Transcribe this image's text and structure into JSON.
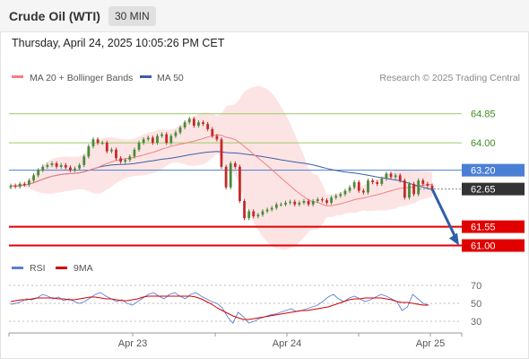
{
  "header": {
    "title": "Crude Oil (WTI)",
    "interval": "30 MIN"
  },
  "datetime": "Thursday, April 24, 2025 10:05:26 PM CET",
  "legend": {
    "ma20": "MA 20 + Bollinger Bands",
    "ma50": "MA 50",
    "copyright": "Research © 2025 Trading Central"
  },
  "rsi_legend": {
    "rsi": "RSI",
    "ma9": "9MA"
  },
  "colors": {
    "candle_up": "#4a8a3a",
    "candle_down": "#c62828",
    "ma20": "#f08080",
    "ma50": "#3b5fa8",
    "bands": "#fde4e4",
    "resistance": "#9ccc65",
    "pivot": "#4a7fd6",
    "support": "#e00000",
    "current": "#333333",
    "arrow": "#2f5ea8",
    "rsi_line": "#5b7fd4",
    "rsi_ma": "#d40000"
  },
  "chart_data": [
    {
      "type": "candlestick",
      "instrument": "Crude Oil (WTI)",
      "timeframe": "30 MIN",
      "x_ticks": [
        "Apr 23",
        "Apr 24",
        "Apr 25"
      ],
      "y_range": [
        60.7,
        65.55
      ],
      "close": [
        62.75,
        62.72,
        62.8,
        62.78,
        62.9,
        63.05,
        63.2,
        63.3,
        63.35,
        63.4,
        63.3,
        63.35,
        63.28,
        63.2,
        63.25,
        63.35,
        63.6,
        63.9,
        64.1,
        64.0,
        64.0,
        63.75,
        63.8,
        63.55,
        63.45,
        63.5,
        63.6,
        63.8,
        64.0,
        64.1,
        64.15,
        64.0,
        64.2,
        64.25,
        64.0,
        64.2,
        64.3,
        64.45,
        64.6,
        64.7,
        64.5,
        64.6,
        64.55,
        64.4,
        64.2,
        64.1,
        63.3,
        62.7,
        63.4,
        63.3,
        62.3,
        61.8,
        62.0,
        61.85,
        61.9,
        62.0,
        62.05,
        62.1,
        62.2,
        62.2,
        62.25,
        62.28,
        62.2,
        62.25,
        62.3,
        62.2,
        62.3,
        62.35,
        62.32,
        62.25,
        62.4,
        62.45,
        62.5,
        62.6,
        62.7,
        62.85,
        62.6,
        62.55,
        62.9,
        62.85,
        62.8,
        62.95,
        63.1,
        63.0,
        63.05,
        62.9,
        62.4,
        62.8,
        62.5,
        62.9,
        62.8,
        62.75,
        62.65
      ],
      "indicators": [
        "MA 20 + Bollinger Bands",
        "MA 50"
      ],
      "levels": [
        {
          "label": "64.85",
          "value": 64.85,
          "kind": "resistance"
        },
        {
          "label": "64.00",
          "value": 64.0,
          "kind": "resistance"
        },
        {
          "label": "63.20",
          "value": 63.2,
          "kind": "pivot"
        },
        {
          "label": "62.65",
          "value": 62.65,
          "kind": "current"
        },
        {
          "label": "61.55",
          "value": 61.55,
          "kind": "support"
        },
        {
          "label": "61.00",
          "value": 61.0,
          "kind": "support"
        }
      ],
      "projection": {
        "from": 62.65,
        "to": 61.0
      }
    },
    {
      "type": "line",
      "name": "RSI",
      "y_ticks": [
        70,
        50,
        30
      ],
      "y_range": [
        20,
        80
      ],
      "series": [
        {
          "name": "RSI",
          "values": [
            49,
            50,
            52,
            55,
            54,
            56,
            60,
            58,
            55,
            57,
            53,
            55,
            52,
            50,
            52,
            56,
            60,
            62,
            58,
            55,
            52,
            54,
            50,
            48,
            52,
            56,
            60,
            62,
            58,
            55,
            60,
            62,
            58,
            55,
            60,
            62,
            58,
            55,
            52,
            50,
            45,
            35,
            28,
            40,
            35,
            28,
            30,
            33,
            35,
            37,
            38,
            40,
            42,
            44,
            41,
            42,
            44,
            46,
            48,
            52,
            57,
            60,
            55,
            52,
            56,
            58,
            55,
            52,
            54,
            57,
            60,
            58,
            55,
            52,
            42,
            46,
            60,
            55,
            50,
            48
          ]
        },
        {
          "name": "9MA",
          "values": [
            52,
            53,
            54,
            54,
            55,
            56,
            56,
            56,
            56,
            55,
            55,
            54,
            54,
            55,
            56,
            57,
            57,
            56,
            55,
            55,
            54,
            53,
            53,
            54,
            55,
            57,
            58,
            58,
            58,
            58,
            58,
            58,
            58,
            58,
            58,
            57,
            55,
            52,
            49,
            45,
            42,
            39,
            36,
            34,
            32,
            32,
            33,
            34,
            35,
            36,
            37,
            38,
            39,
            40,
            41,
            42,
            42,
            43,
            44,
            45,
            46,
            48,
            50,
            52,
            54,
            55,
            55,
            56,
            56,
            56,
            56,
            55,
            54,
            52,
            51,
            51,
            50,
            49,
            48,
            48
          ]
        }
      ]
    }
  ]
}
